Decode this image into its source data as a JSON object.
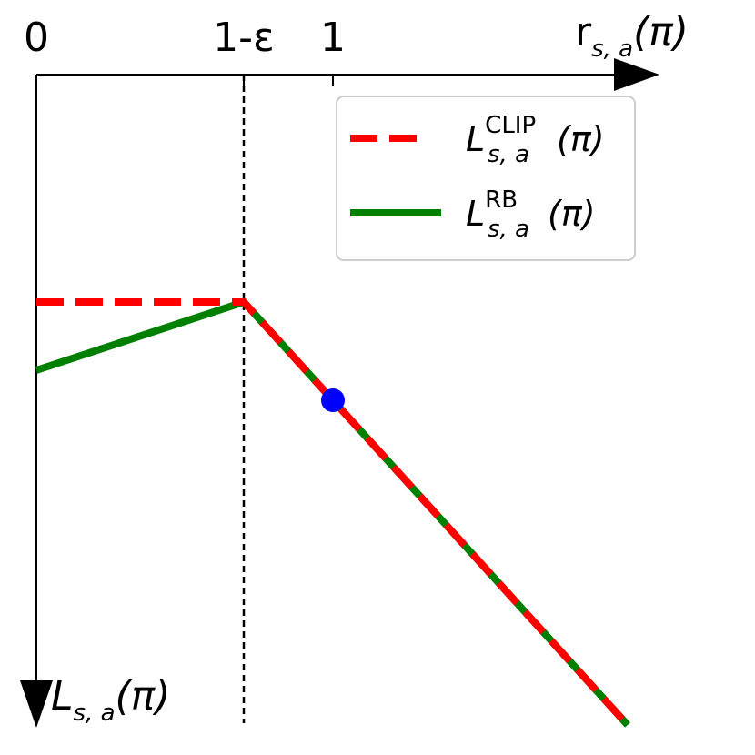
{
  "x_axis": {
    "ticks": [
      "0",
      "1-ε",
      "1"
    ],
    "label": {
      "base": "r",
      "sub": "s, a",
      "arg": "(π)"
    }
  },
  "y_axis": {
    "label": {
      "base": "L",
      "sub": "s, a",
      "arg": "(π)"
    }
  },
  "legend": [
    {
      "base": "L",
      "sup": "CLIP",
      "sub": "s, a",
      "arg": "(π)"
    },
    {
      "base": "L",
      "sup": "RB",
      "sub": "s, a",
      "arg": "(π)"
    }
  ]
}
